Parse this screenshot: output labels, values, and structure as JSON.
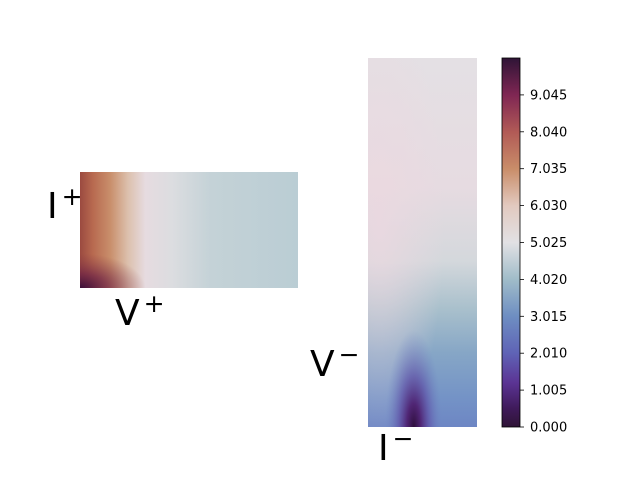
{
  "chart_data": {
    "type": "heatmap",
    "colormap": "twilight_shifted",
    "panels": [
      {
        "name": "left",
        "labels": [
          "I",
          "V"
        ],
        "signs": [
          "+",
          "+"
        ]
      },
      {
        "name": "right",
        "labels": [
          "V",
          "I"
        ],
        "signs": [
          "−",
          "−"
        ]
      }
    ],
    "colorbar": {
      "range": [
        0.0,
        10.05
      ],
      "ticks": [
        "0.000",
        "1.005",
        "2.010",
        "3.015",
        "4.020",
        "5.025",
        "6.030",
        "7.035",
        "8.040",
        "9.045"
      ]
    }
  }
}
